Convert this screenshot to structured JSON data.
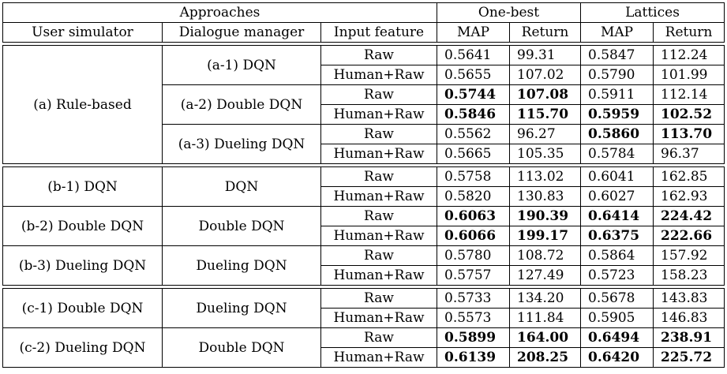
{
  "header": {
    "approaches": "Approaches",
    "one_best": "One-best",
    "lattices": "Lattices",
    "user_simulator": "User simulator",
    "dialogue_manager": "Dialogue manager",
    "input_feature": "Input feature",
    "map": "MAP",
    "return": "Return"
  },
  "groups": [
    {
      "user_simulator": "(a) Rule-based",
      "managers": [
        {
          "name": "(a-1) DQN",
          "rows": [
            {
              "feature": "Raw",
              "ob_map": "0.5641",
              "ob_ret": "99.31",
              "lat_map": "0.5847",
              "lat_ret": "112.24"
            },
            {
              "feature": "Human+Raw",
              "ob_map": "0.5655",
              "ob_ret": "107.02",
              "lat_map": "0.5790",
              "lat_ret": "101.99"
            }
          ]
        },
        {
          "name": "(a-2) Double DQN",
          "rows": [
            {
              "feature": "Raw",
              "ob_map": "0.5744",
              "ob_ret": "107.08",
              "lat_map": "0.5911",
              "lat_ret": "112.14"
            },
            {
              "feature": "Human+Raw",
              "ob_map": "0.5846",
              "ob_ret": "115.70",
              "lat_map": "0.5959",
              "lat_ret": "102.52"
            }
          ]
        },
        {
          "name": "(a-3) Dueling DQN",
          "rows": [
            {
              "feature": "Raw",
              "ob_map": "0.5562",
              "ob_ret": "96.27",
              "lat_map": "0.5860",
              "lat_ret": "113.70"
            },
            {
              "feature": "Human+Raw",
              "ob_map": "0.5665",
              "ob_ret": "105.35",
              "lat_map": "0.5784",
              "lat_ret": "96.37"
            }
          ]
        }
      ]
    },
    {
      "pairs": [
        {
          "user_simulator": "(b-1) DQN",
          "manager": "DQN",
          "rows": [
            {
              "feature": "Raw",
              "ob_map": "0.5758",
              "ob_ret": "113.02",
              "lat_map": "0.6041",
              "lat_ret": "162.85"
            },
            {
              "feature": "Human+Raw",
              "ob_map": "0.5820",
              "ob_ret": "130.83",
              "lat_map": "0.6027",
              "lat_ret": "162.93"
            }
          ]
        },
        {
          "user_simulator": "(b-2) Double DQN",
          "manager": "Double DQN",
          "rows": [
            {
              "feature": "Raw",
              "ob_map": "0.6063",
              "ob_ret": "190.39",
              "lat_map": "0.6414",
              "lat_ret": "224.42"
            },
            {
              "feature": "Human+Raw",
              "ob_map": "0.6066",
              "ob_ret": "199.17",
              "lat_map": "0.6375",
              "lat_ret": "222.66"
            }
          ]
        },
        {
          "user_simulator": "(b-3) Dueling DQN",
          "manager": "Dueling DQN",
          "rows": [
            {
              "feature": "Raw",
              "ob_map": "0.5780",
              "ob_ret": "108.72",
              "lat_map": "0.5864",
              "lat_ret": "157.92"
            },
            {
              "feature": "Human+Raw",
              "ob_map": "0.5757",
              "ob_ret": "127.49",
              "lat_map": "0.5723",
              "lat_ret": "158.23"
            }
          ]
        }
      ]
    },
    {
      "pairs": [
        {
          "user_simulator": "(c-1) Double DQN",
          "manager": "Dueling DQN",
          "rows": [
            {
              "feature": "Raw",
              "ob_map": "0.5733",
              "ob_ret": "134.20",
              "lat_map": "0.5678",
              "lat_ret": "143.83"
            },
            {
              "feature": "Human+Raw",
              "ob_map": "0.5573",
              "ob_ret": "111.84",
              "lat_map": "0.5905",
              "lat_ret": "146.83"
            }
          ]
        },
        {
          "user_simulator": "(c-2) Dueling DQN",
          "manager": "Double DQN",
          "rows": [
            {
              "feature": "Raw",
              "ob_map": "0.5899",
              "ob_ret": "164.00",
              "lat_map": "0.6494",
              "lat_ret": "238.91"
            },
            {
              "feature": "Human+Raw",
              "ob_map": "0.6139",
              "ob_ret": "208.25",
              "lat_map": "0.6420",
              "lat_ret": "225.72"
            }
          ]
        }
      ]
    }
  ]
}
